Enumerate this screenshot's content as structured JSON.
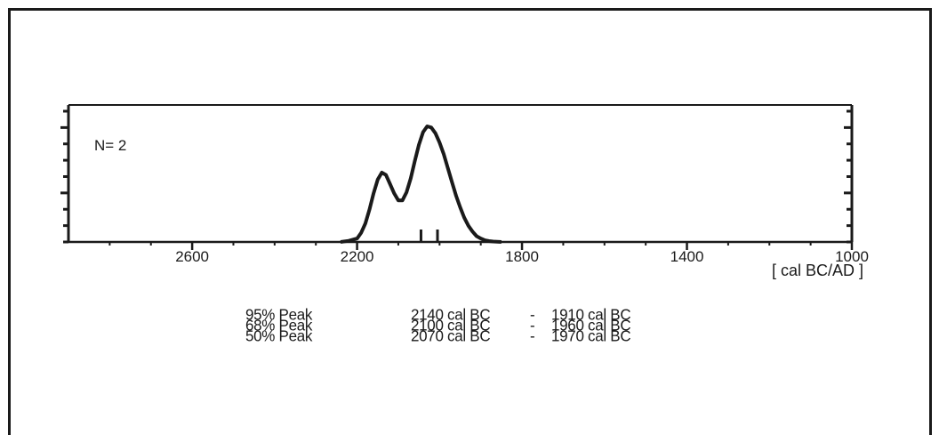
{
  "chart_data": {
    "type": "area",
    "annotation": "N= 2",
    "xlabel": "[ cal BC/AD ]",
    "x_axis": {
      "reversed": true,
      "xlim": [
        2900,
        1000
      ],
      "tick_values": [
        2600,
        2200,
        1800,
        1400,
        1000
      ],
      "tick_labels": [
        "2600",
        "2200",
        "1800",
        "1400",
        "1000"
      ]
    },
    "y_axis": {
      "shown": false
    },
    "series": [
      {
        "x": [
          2240,
          2220,
          2200,
          2190,
          2180,
          2170,
          2160,
          2150,
          2140,
          2130,
          2120,
          2110,
          2100,
          2090,
          2080,
          2070,
          2060,
          2050,
          2040,
          2030,
          2020,
          2010,
          2000,
          1990,
          1980,
          1970,
          1960,
          1950,
          1940,
          1930,
          1920,
          1910,
          1900,
          1890,
          1880,
          1870,
          1860,
          1850
        ],
        "y": [
          0,
          0.01,
          0.03,
          0.08,
          0.16,
          0.28,
          0.42,
          0.54,
          0.6,
          0.58,
          0.5,
          0.42,
          0.36,
          0.36,
          0.43,
          0.55,
          0.7,
          0.84,
          0.95,
          1.0,
          0.99,
          0.94,
          0.86,
          0.76,
          0.64,
          0.52,
          0.4,
          0.3,
          0.21,
          0.14,
          0.09,
          0.05,
          0.03,
          0.015,
          0.008,
          0.004,
          0.002,
          0
        ]
      }
    ],
    "measurement_marks": [
      2045,
      2005
    ],
    "stats": [
      {
        "label": "95% Peak",
        "from": "2140 cal BC",
        "to": "1910 cal BC"
      },
      {
        "label": "68% Peak",
        "from": "2100 cal BC",
        "to": "1960 cal BC"
      },
      {
        "label": "50% Peak",
        "from": "2070 cal BC",
        "to": "1970 cal BC"
      }
    ],
    "grid": false,
    "colors": {
      "line": "#1a1a1a",
      "background": "#ffffff"
    }
  }
}
